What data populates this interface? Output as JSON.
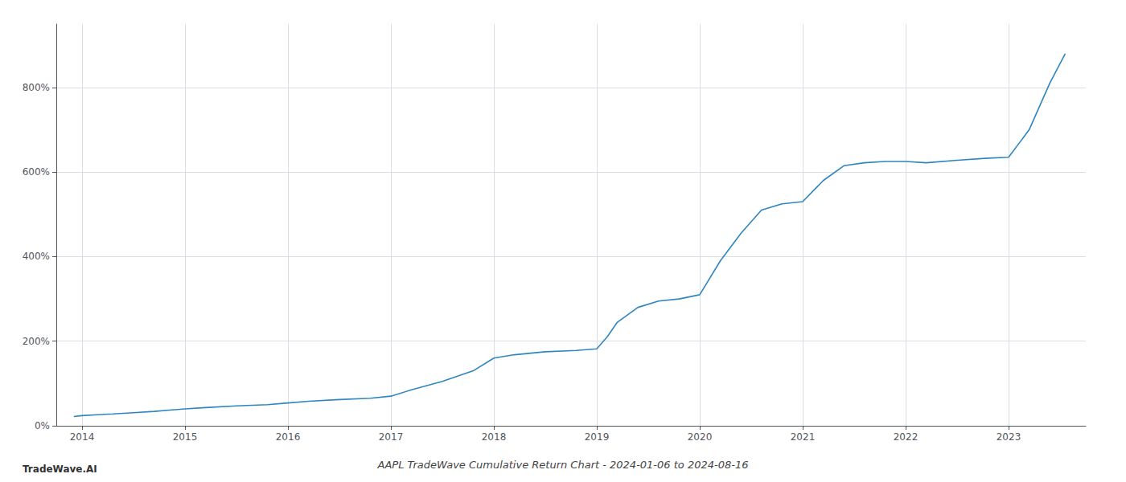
{
  "chart_data": {
    "type": "line",
    "title": "AAPL TradeWave Cumulative Return Chart - 2024-01-06 to 2024-08-16",
    "annotations": [
      "TradeWave.AI"
    ],
    "x": [
      2013.92,
      2014.0,
      2014.15,
      2014.3,
      2014.5,
      2014.7,
      2014.85,
      2015.0,
      2015.2,
      2015.5,
      2015.8,
      2016.0,
      2016.2,
      2016.5,
      2016.8,
      2017.0,
      2017.2,
      2017.5,
      2017.8,
      2018.0,
      2018.2,
      2018.5,
      2018.8,
      2019.0,
      2019.1,
      2019.2,
      2019.4,
      2019.6,
      2019.8,
      2020.0,
      2020.2,
      2020.4,
      2020.6,
      2020.8,
      2021.0,
      2021.2,
      2021.4,
      2021.6,
      2021.8,
      2022.0,
      2022.2,
      2022.5,
      2022.8,
      2023.0,
      2023.2,
      2023.4,
      2023.55
    ],
    "values": [
      22,
      24,
      26,
      28,
      31,
      34,
      37,
      40,
      43,
      47,
      50,
      54,
      58,
      62,
      65,
      70,
      85,
      105,
      130,
      160,
      168,
      175,
      178,
      182,
      210,
      245,
      280,
      295,
      300,
      310,
      390,
      455,
      510,
      525,
      530,
      580,
      615,
      622,
      625,
      625,
      622,
      628,
      633,
      635,
      700,
      810,
      880
    ],
    "color": "#2e86c1",
    "xlim": [
      2013.75,
      2023.75
    ],
    "xticks": [
      2014,
      2015,
      2016,
      2017,
      2018,
      2019,
      2020,
      2021,
      2022,
      2023
    ],
    "ylim": [
      0,
      950
    ],
    "yticks": [
      {
        "value": 0,
        "label": "0%"
      },
      {
        "value": 200,
        "label": "200%"
      },
      {
        "value": 400,
        "label": "400%"
      },
      {
        "value": 600,
        "label": "600%"
      },
      {
        "value": 800,
        "label": "800%"
      }
    ],
    "grid": true
  }
}
